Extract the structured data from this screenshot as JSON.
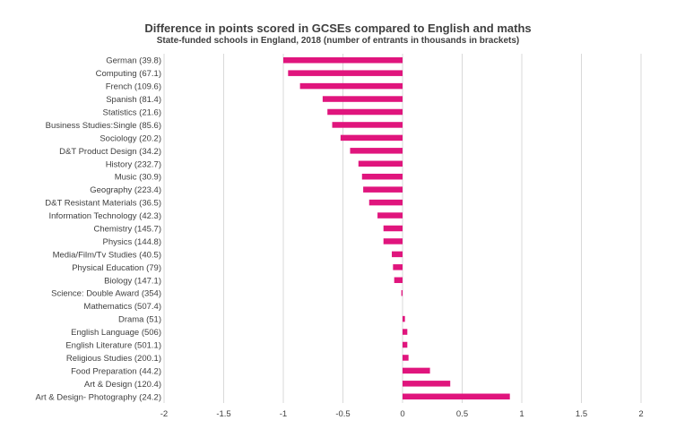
{
  "chart_data": {
    "type": "bar",
    "orientation": "horizontal",
    "title": "Difference in points scored in GCSEs compared to English and maths",
    "subtitle": "State-funded schools in England, 2018 (number of entrants in thousands in brackets)",
    "categories": [
      "German (39.8)",
      "Computing (67.1)",
      "French (109.6)",
      "Spanish (81.4)",
      "Statistics (21.6)",
      "Business Studies:Single (85.6)",
      "Sociology (20.2)",
      "D&T Product Design (34.2)",
      "History (232.7)",
      "Music (30.9)",
      "Geography (223.4)",
      "D&T Resistant Materials (36.5)",
      "Information Technology (42.3)",
      "Chemistry (145.7)",
      "Physics (144.8)",
      "Media/Film/Tv Studies (40.5)",
      "Physical Education (79)",
      "Biology (147.1)",
      "Science: Double Award (354)",
      "Mathematics (507.4)",
      "Drama (51)",
      "English Language (506)",
      "English Literature (501.1)",
      "Religious Studies (200.1)",
      "Food Preparation (44.2)",
      "Art & Design (120.4)",
      "Art & Design- Photography (24.2)"
    ],
    "values": [
      -1.0,
      -0.96,
      -0.86,
      -0.67,
      -0.63,
      -0.59,
      -0.52,
      -0.44,
      -0.37,
      -0.34,
      -0.33,
      -0.28,
      -0.21,
      -0.16,
      -0.16,
      -0.09,
      -0.08,
      -0.07,
      -0.01,
      0.0,
      0.02,
      0.04,
      0.04,
      0.05,
      0.23,
      0.4,
      0.9
    ],
    "xlim": [
      -2,
      2
    ],
    "xticks": [
      "-2",
      "-1.5",
      "-1",
      "-0.5",
      "0",
      "0.5",
      "1",
      "1.5",
      "2"
    ],
    "grid": true,
    "color": "#E0157D"
  }
}
